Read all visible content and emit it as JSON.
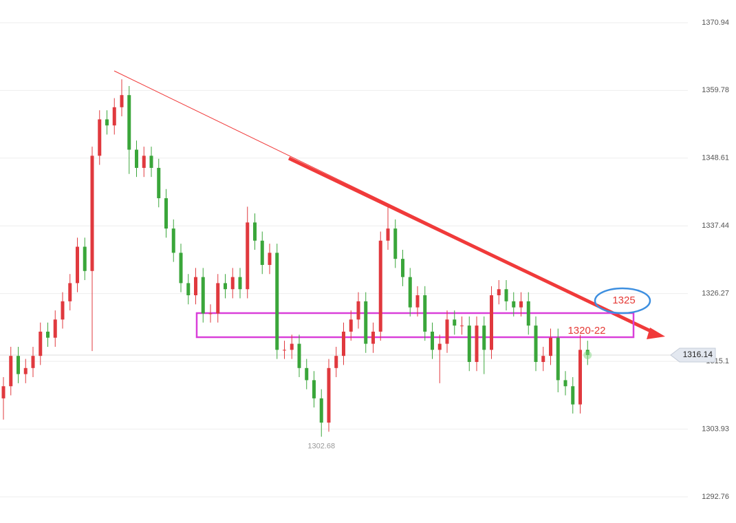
{
  "chart_data": {
    "type": "candlestick",
    "up_color": "#e0393e",
    "down_color": "#3aa63a",
    "ylim": [
      1288.45,
      1374.68
    ],
    "yticks": [
      1370.94,
      1359.78,
      1348.61,
      1337.44,
      1326.27,
      1315.1,
      1303.93,
      1292.76
    ],
    "grid": true,
    "open": [
      1309,
      1311,
      1316,
      1313,
      1314,
      1316,
      1320,
      1319,
      1322,
      1325,
      1328,
      1334,
      1330,
      1349,
      1355,
      1354,
      1357,
      1359,
      1350,
      1347,
      1349,
      1347,
      1342,
      1337,
      1333,
      1328,
      1326,
      1329,
      1323,
      1323,
      1328,
      1327,
      1329,
      1327,
      1338,
      1335,
      1331,
      1333,
      1317,
      1317,
      1318,
      1314,
      1312,
      1309,
      1305,
      1314,
      1316,
      1320,
      1322,
      1325,
      1318,
      1320,
      1335,
      1337,
      1332,
      1329,
      1324,
      1326,
      1320,
      1317,
      1318,
      1322,
      1321,
      1321,
      1315,
      1321,
      1317,
      1326,
      1327,
      1325,
      1324,
      1325,
      1321,
      1315,
      1316,
      1319,
      1312,
      1311,
      1308,
      1317
    ],
    "high": [
      1312.5,
      1317.5,
      1317.5,
      1315.5,
      1317.5,
      1321.5,
      1321.5,
      1323.5,
      1326.5,
      1329.5,
      1335.5,
      1335.5,
      1350.5,
      1356.5,
      1356.5,
      1358.5,
      1361.6,
      1360.5,
      1351.5,
      1350.5,
      1350.5,
      1348.5,
      1343.5,
      1338.5,
      1334.5,
      1329.5,
      1330.5,
      1330.5,
      1324.5,
      1329.5,
      1329.5,
      1330.5,
      1330.5,
      1340.6,
      1339.5,
      1336.5,
      1334.5,
      1334.5,
      1318.5,
      1319.5,
      1319.5,
      1315.5,
      1313.5,
      1310.5,
      1315.5,
      1317.5,
      1321.5,
      1323.5,
      1326.5,
      1326.5,
      1321.5,
      1336.5,
      1340.5,
      1338.5,
      1333.5,
      1330.5,
      1327.5,
      1327.5,
      1321.5,
      1319.5,
      1323.5,
      1323.5,
      1322.5,
      1322.5,
      1322.5,
      1322.5,
      1327.5,
      1328.5,
      1328.5,
      1326.5,
      1326.5,
      1326.5,
      1322.5,
      1317.5,
      1320.5,
      1320.5,
      1313.5,
      1312.5,
      1319.5,
      1318.5
    ],
    "low": [
      1305.5,
      1309.5,
      1311.5,
      1311.5,
      1312.5,
      1314.5,
      1317.5,
      1317.5,
      1320.5,
      1323.5,
      1326.5,
      1328.5,
      1316.8,
      1347.5,
      1352.5,
      1352.5,
      1355.5,
      1346,
      1345.5,
      1345.5,
      1345.5,
      1340.5,
      1335.5,
      1331.5,
      1326.5,
      1324.5,
      1324.5,
      1321.5,
      1321.5,
      1321.5,
      1325.5,
      1325.5,
      1325.5,
      1325.5,
      1333.5,
      1329.5,
      1329.5,
      1315.5,
      1315.5,
      1315.5,
      1312.5,
      1310.5,
      1307.5,
      1302.68,
      1303.5,
      1312.5,
      1314.5,
      1318.5,
      1320.5,
      1316.5,
      1316.5,
      1318.5,
      1333.5,
      1330.5,
      1327.5,
      1322.5,
      1322.5,
      1318.5,
      1315.5,
      1311.5,
      1316.5,
      1319.5,
      1319.5,
      1313.5,
      1313.5,
      1313,
      1315.5,
      1324.5,
      1323.5,
      1322.5,
      1322.5,
      1319.5,
      1313.5,
      1313.5,
      1314.5,
      1310,
      1309.5,
      1306.5,
      1306.5,
      1314.5
    ],
    "close": [
      1311,
      1316,
      1313,
      1314,
      1316,
      1320,
      1319,
      1322,
      1325,
      1328,
      1334,
      1330,
      1349,
      1355,
      1354,
      1357,
      1359,
      1350,
      1347,
      1349,
      1347,
      1342,
      1337,
      1333,
      1328,
      1326,
      1329,
      1323,
      1323,
      1328,
      1327,
      1329,
      1327,
      1338,
      1335,
      1331,
      1333,
      1317,
      1317,
      1318,
      1314,
      1312,
      1309,
      1305,
      1314,
      1316,
      1320,
      1322,
      1325,
      1318,
      1320,
      1335,
      1337,
      1332,
      1329,
      1324,
      1326,
      1320,
      1317,
      1318,
      1322,
      1321,
      1321,
      1315,
      1321,
      1317,
      1326,
      1327,
      1325,
      1324,
      1325,
      1321,
      1315,
      1316,
      1319,
      1312,
      1311,
      1308,
      1317,
      1316.14
    ],
    "last_price": 1316.14,
    "low_label": 1302.68,
    "annotations": [
      "1325",
      "1320-22"
    ]
  }
}
